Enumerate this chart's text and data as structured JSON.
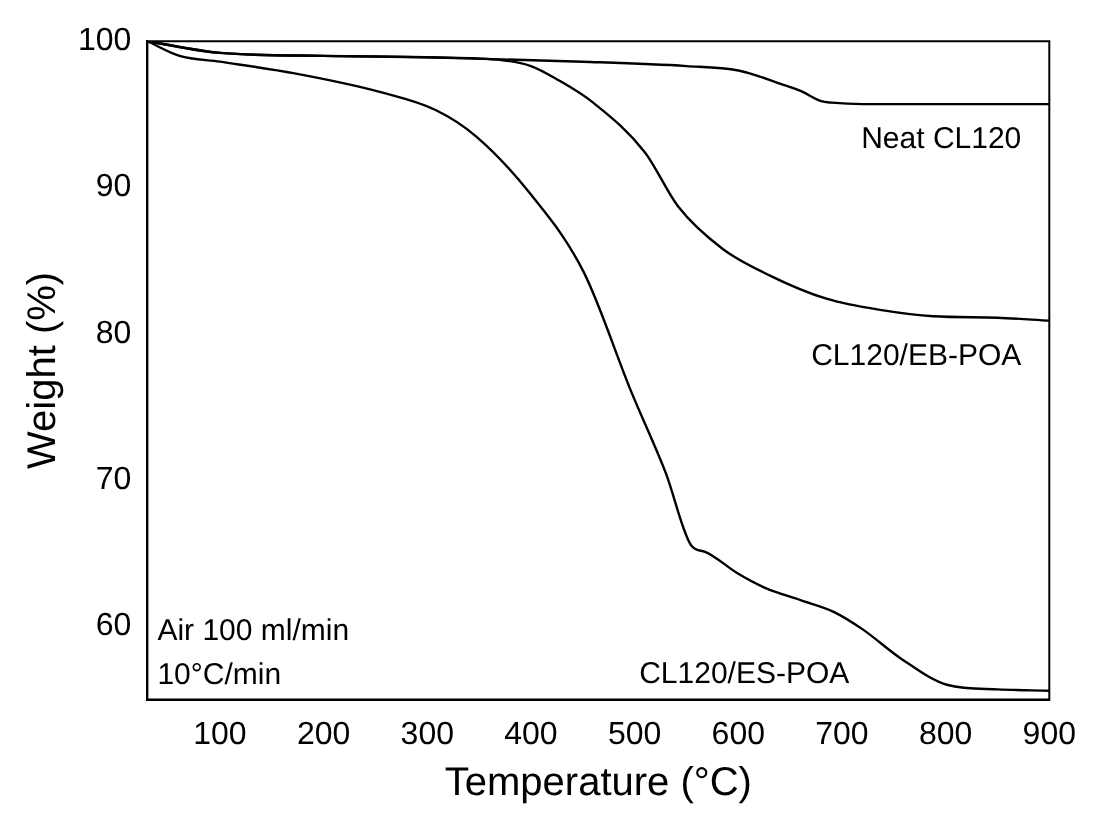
{
  "chart_data": {
    "type": "line",
    "xlabel": "Temperature (°C)",
    "ylabel": "Weight (%)",
    "xlim": [
      30,
      900
    ],
    "ylim": [
      55,
      100
    ],
    "xticks": [
      100,
      200,
      300,
      400,
      500,
      600,
      700,
      800,
      900
    ],
    "yticks": [
      60,
      70,
      80,
      90,
      100
    ],
    "grid": false,
    "legend": false,
    "marker": "none",
    "line_style": "solid",
    "annotations": [
      "Air 100 ml/min",
      "10°C/min"
    ],
    "series": [
      {
        "name": "Neat CL120",
        "color": "#000000",
        "x": [
          30,
          100,
          200,
          300,
          450,
          550,
          600,
          620,
          640,
          660,
          680,
          690,
          720,
          800,
          900
        ],
        "values": [
          100,
          99.2,
          99,
          98.9,
          98.6,
          98.3,
          98,
          97.6,
          97.1,
          96.6,
          95.9,
          95.8,
          95.7,
          95.7,
          95.7
        ]
      },
      {
        "name": "CL120/EB-POA",
        "color": "#000000",
        "x": [
          30,
          100,
          200,
          300,
          373,
          400,
          425,
          460,
          510,
          542,
          585,
          630,
          685,
          740,
          788,
          850,
          900
        ],
        "values": [
          100,
          99.2,
          99,
          98.9,
          98.7,
          98.3,
          97.4,
          95.8,
          92.4,
          88.7,
          85.8,
          84,
          82.4,
          81.6,
          81.2,
          81.1,
          80.9
        ]
      },
      {
        "name": "CL120/ES-POA",
        "color": "#000000",
        "x": [
          30,
          61,
          100,
          172,
          256,
          308,
          347,
          399,
          451,
          497,
          530,
          555,
          568,
          600,
          627,
          660,
          692,
          720,
          757,
          802,
          850,
          900
        ],
        "values": [
          100,
          99,
          98.6,
          97.8,
          96.5,
          95.3,
          93.5,
          89.6,
          84.2,
          76,
          70.5,
          65.5,
          65.1,
          63.6,
          62.6,
          61.8,
          61,
          59.8,
          57.8,
          56,
          55.7,
          55.6
        ]
      }
    ]
  }
}
